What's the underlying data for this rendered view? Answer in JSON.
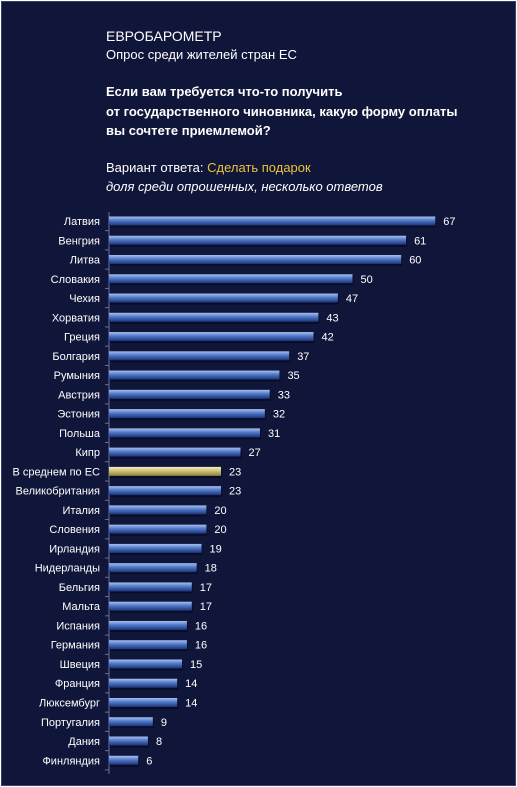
{
  "header": {
    "source": "ЕВРОБАРОМЕТР",
    "subtitle": "Опрос среди жителей стран ЕС",
    "question_lines": [
      "Если вам требуется что-то получить",
      "от государственного чиновника, какую форму оплаты",
      "вы сочтете приемлемой?"
    ],
    "answer_label": "Вариант ответа:",
    "answer_value": "Сделать подарок",
    "note": "доля среди опрошенных, несколько ответов"
  },
  "colors": {
    "background": "#10163a",
    "bar": "#4a72c0",
    "bar_highlight": "#cfc27a",
    "answer_accent": "#f0c23c"
  },
  "chart_data": {
    "type": "bar",
    "orientation": "horizontal",
    "categories": [
      "Латвия",
      "Венгрия",
      "Литва",
      "Словакия",
      "Чехия",
      "Хорватия",
      "Греция",
      "Болгария",
      "Румыния",
      "Австрия",
      "Эстония",
      "Польша",
      "Кипр",
      "В среднем по ЕС",
      "Великобритания",
      "Италия",
      "Словения",
      "Ирландия",
      "Нидерланды",
      "Бельгия",
      "Мальта",
      "Испания",
      "Германия",
      "Швеция",
      "Франция",
      "Люксембург",
      "Португалия",
      "Дания",
      "Финляндия"
    ],
    "values": [
      67,
      61,
      60,
      50,
      47,
      43,
      42,
      37,
      35,
      33,
      32,
      31,
      27,
      23,
      23,
      20,
      20,
      19,
      18,
      17,
      17,
      16,
      16,
      15,
      14,
      14,
      9,
      8,
      6
    ],
    "highlight_category": "В среднем по ЕС",
    "grid": false
  }
}
